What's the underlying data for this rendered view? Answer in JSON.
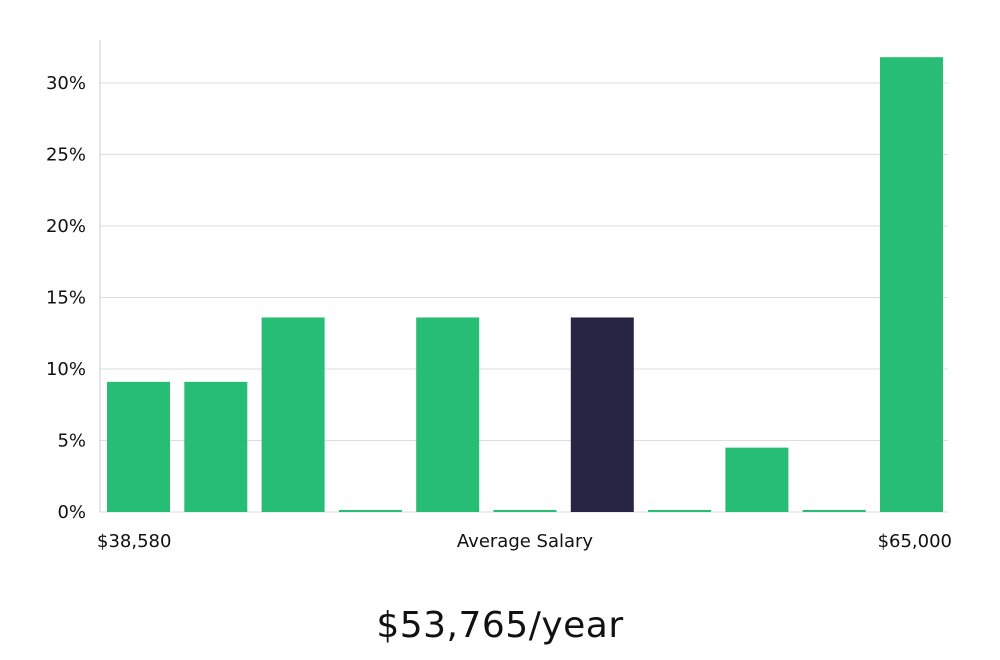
{
  "chart_data": {
    "type": "bar",
    "values": [
      9.1,
      9.1,
      13.6,
      0,
      13.6,
      0,
      13.6,
      0,
      4.5,
      0,
      31.8
    ],
    "highlight_index": 6,
    "ylim": [
      0,
      33
    ],
    "yticks": [
      0,
      5,
      10,
      15,
      20,
      25,
      30
    ],
    "ytick_suffix": "%",
    "xlabel_left": "$38,580",
    "xlabel_center": "Average Salary",
    "xlabel_right": "$65,000",
    "grid": true,
    "colors": {
      "bar": "#28bd75",
      "highlight": "#272444",
      "grid": "#dddddd",
      "axis": "#cccccc"
    }
  },
  "summary": {
    "average_salary": "$53,765/year"
  }
}
